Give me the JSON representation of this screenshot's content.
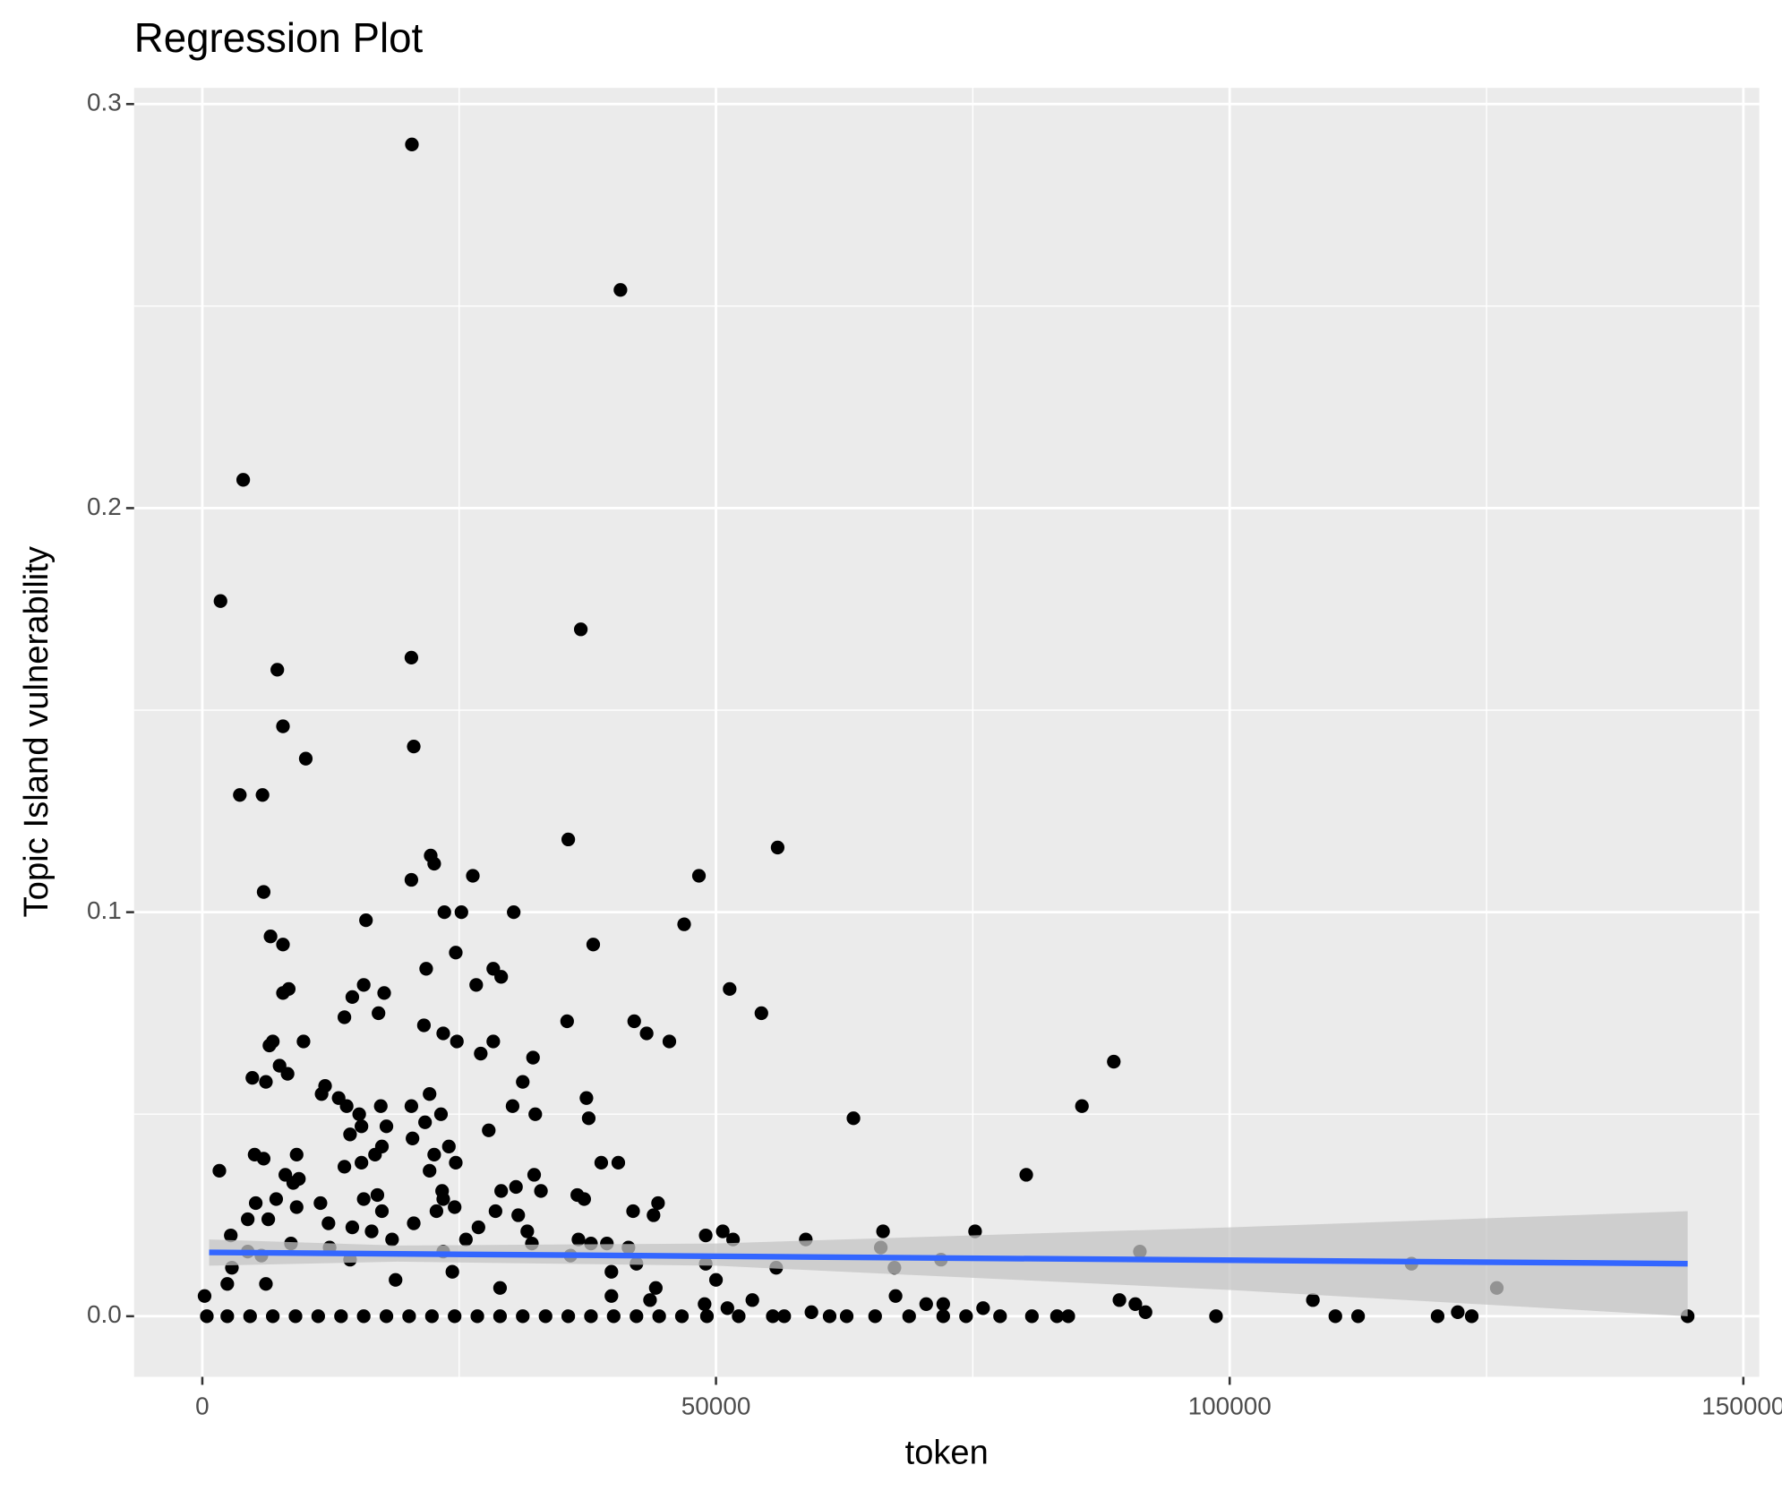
{
  "chart_data": {
    "type": "scatter",
    "title": "Regression Plot",
    "x_label": "token",
    "y_label": "Topic Island vulnerability",
    "xlim": [
      -6640,
      151550
    ],
    "ylim": [
      -0.015,
      0.304
    ],
    "xticks": [
      0,
      50000,
      100000,
      150000
    ],
    "yticks": [
      {
        "value": 0,
        "label": "0.0"
      },
      0.1,
      0.2,
      0.3
    ],
    "x_minor_ticks": [
      25000,
      75000,
      125000
    ],
    "y_minor_ticks": [
      0.05,
      0.15,
      0.25
    ],
    "grid": true,
    "panel_color": "#ebebeb",
    "point_color": "#000000",
    "fit_color": "#3366ff",
    "band_color": "#c4c4c4",
    "x": [
      20400,
      40700,
      3980,
      1770,
      36840,
      20350,
      7300,
      7850,
      20580,
      10070,
      3650,
      5860,
      35620,
      56000,
      22230,
      22570,
      20350,
      26330,
      48340,
      5970,
      23560,
      25220,
      30310,
      46900,
      15930,
      6640,
      7850,
      38050,
      24670,
      21790,
      28320,
      29090,
      15710,
      26660,
      8410,
      51330,
      17700,
      7850,
      13830,
      17150,
      54420,
      14600,
      35510,
      42040,
      21570,
      23450,
      43250,
      6860,
      9850,
      24780,
      28320,
      45460,
      6530,
      27100,
      32190,
      7520,
      88720,
      8300,
      4870,
      6190,
      31190,
      11950,
      11610,
      13270,
      22120,
      37390,
      17370,
      20350,
      30200,
      85620,
      14050,
      15270,
      23230,
      32410,
      37610,
      63380,
      17920,
      21680,
      15490,
      27880,
      14380,
      17480,
      20460,
      24000,
      22570,
      9180,
      5090,
      16810,
      38830,
      40490,
      5970,
      24670,
      13830,
      15490,
      1660,
      22120,
      8080,
      9400,
      32300,
      80200,
      8850,
      30530,
      23340,
      29090,
      32960,
      36500,
      37170,
      5200,
      7190,
      15710,
      17040,
      11500,
      9180,
      23450,
      24560,
      44360,
      41930,
      28540,
      22790,
      17480,
      30750,
      43920,
      6420,
      4420,
      12280,
      20580,
      14600,
      26880,
      31630,
      16480,
      66260,
      75220,
      2770,
      49000,
      50660,
      51660,
      18470,
      25660,
      36610,
      32080,
      37830,
      39380,
      58740,
      8630,
      66040,
      12390,
      4420,
      41480,
      91260,
      35840,
      5750,
      14380,
      23450,
      71900,
      42260,
      49000,
      117700,
      2880,
      55860,
      67370,
      39820,
      24340,
      50000,
      18810,
      126000,
      6190,
      44140,
      2430,
      28980,
      67480,
      108100,
      89270,
      90820,
      53540,
      39820,
      220,
      43580,
      48890,
      70460,
      72120,
      76000,
      51110,
      122200,
      91810,
      59290,
      440,
      2430,
      4650,
      6860,
      9070,
      11280,
      13500,
      15710,
      17920,
      20130,
      22350,
      24560,
      26770,
      28980,
      31190,
      33410,
      35620,
      37830,
      40040,
      42260,
      44470,
      46680,
      49120,
      52210,
      55530,
      56640,
      61060,
      62720,
      65490,
      68800,
      72120,
      74340,
      77650,
      80750,
      83190,
      84290,
      98670,
      110290,
      112500,
      120240,
      123560,
      144580
    ],
    "values": [
      0.29,
      0.254,
      0.207,
      0.177,
      0.17,
      0.163,
      0.16,
      0.146,
      0.141,
      0.138,
      0.129,
      0.129,
      0.118,
      0.116,
      0.114,
      0.112,
      0.108,
      0.109,
      0.109,
      0.105,
      0.1,
      0.1,
      0.1,
      0.097,
      0.098,
      0.094,
      0.092,
      0.092,
      0.09,
      0.086,
      0.086,
      0.084,
      0.082,
      0.082,
      0.081,
      0.081,
      0.08,
      0.08,
      0.074,
      0.075,
      0.075,
      0.079,
      0.073,
      0.073,
      0.072,
      0.07,
      0.07,
      0.068,
      0.068,
      0.068,
      0.068,
      0.068,
      0.067,
      0.065,
      0.064,
      0.062,
      0.063,
      0.06,
      0.059,
      0.058,
      0.058,
      0.057,
      0.055,
      0.054,
      0.055,
      0.054,
      0.052,
      0.052,
      0.052,
      0.052,
      0.052,
      0.05,
      0.05,
      0.05,
      0.049,
      0.049,
      0.047,
      0.048,
      0.047,
      0.046,
      0.045,
      0.042,
      0.044,
      0.042,
      0.04,
      0.04,
      0.04,
      0.04,
      0.038,
      0.038,
      0.039,
      0.038,
      0.037,
      0.038,
      0.036,
      0.036,
      0.035,
      0.034,
      0.035,
      0.035,
      0.033,
      0.032,
      0.031,
      0.031,
      0.031,
      0.03,
      0.029,
      0.028,
      0.029,
      0.029,
      0.03,
      0.028,
      0.027,
      0.029,
      0.027,
      0.028,
      0.026,
      0.026,
      0.026,
      0.026,
      0.025,
      0.025,
      0.024,
      0.024,
      0.023,
      0.023,
      0.022,
      0.022,
      0.021,
      0.021,
      0.021,
      0.021,
      0.02,
      0.02,
      0.021,
      0.019,
      0.019,
      0.019,
      0.019,
      0.018,
      0.018,
      0.018,
      0.019,
      0.018,
      0.017,
      0.017,
      0.016,
      0.017,
      0.016,
      0.015,
      0.015,
      0.014,
      0.016,
      0.014,
      0.013,
      0.013,
      0.013,
      0.012,
      0.012,
      0.012,
      0.011,
      0.011,
      0.009,
      0.009,
      0.007,
      0.008,
      0.007,
      0.008,
      0.007,
      0.005,
      0.004,
      0.004,
      0.003,
      0.004,
      0.005,
      0.005,
      0.004,
      0.003,
      0.003,
      0.003,
      0.002,
      0.002,
      0.001,
      0.001,
      0.001,
      0,
      0,
      0,
      0,
      0,
      0,
      0,
      0,
      0,
      0,
      0,
      0,
      0,
      0,
      0,
      0,
      0,
      0,
      0,
      0,
      0,
      0,
      0,
      0,
      0,
      0,
      0,
      0,
      0,
      0,
      0,
      0,
      0,
      0,
      0,
      0,
      0,
      0,
      0,
      0,
      0,
      0
    ],
    "fit": {
      "x": [
        660,
        144580
      ],
      "values": [
        0.0158,
        0.013
      ]
    },
    "band": {
      "x": [
        660,
        19000,
        50000,
        100000,
        144580
      ],
      "upper": [
        0.019,
        0.0175,
        0.018,
        0.022,
        0.026
      ],
      "lower": [
        0.0125,
        0.0135,
        0.0125,
        0.0065,
        0.0
      ]
    }
  }
}
